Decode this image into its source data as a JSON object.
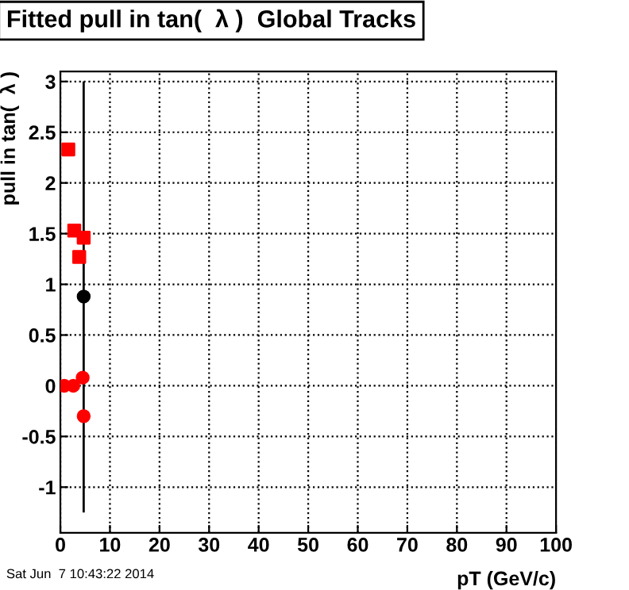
{
  "chart_data": {
    "type": "scatter",
    "title": "Fitted pull in tan(  λ )  Global Tracks",
    "xlabel": "pT (GeV/c)",
    "ylabel": "pull in tan(  λ )",
    "series": [
      {
        "color": "#ff0000",
        "marker": "square",
        "x": [
          1.6,
          2.8,
          3.8,
          4.7
        ],
        "values": [
          2.33,
          1.53,
          1.27,
          1.46
        ]
      },
      {
        "color": "#ff0000",
        "marker": "circle",
        "x": [
          0.8,
          2.6,
          4.5,
          4.7
        ],
        "values": [
          0,
          0,
          0.08,
          -0.3
        ]
      },
      {
        "color": "#000000",
        "marker": "circle",
        "x": [
          4.7
        ],
        "values": [
          0.88
        ],
        "errors": [
          [
            -1.25,
            3.0
          ]
        ]
      }
    ],
    "xlim": [
      0,
      100
    ],
    "ylim": [
      -1.45,
      3.1
    ],
    "xticks": [
      0,
      10,
      20,
      30,
      40,
      50,
      60,
      70,
      80,
      90,
      100
    ],
    "yticks": [
      -1,
      -0.5,
      0,
      0.5,
      1,
      1.5,
      2,
      2.5,
      3
    ],
    "grid": true,
    "annotations": [
      "Sat Jun  7 10:43:22 2014"
    ]
  }
}
